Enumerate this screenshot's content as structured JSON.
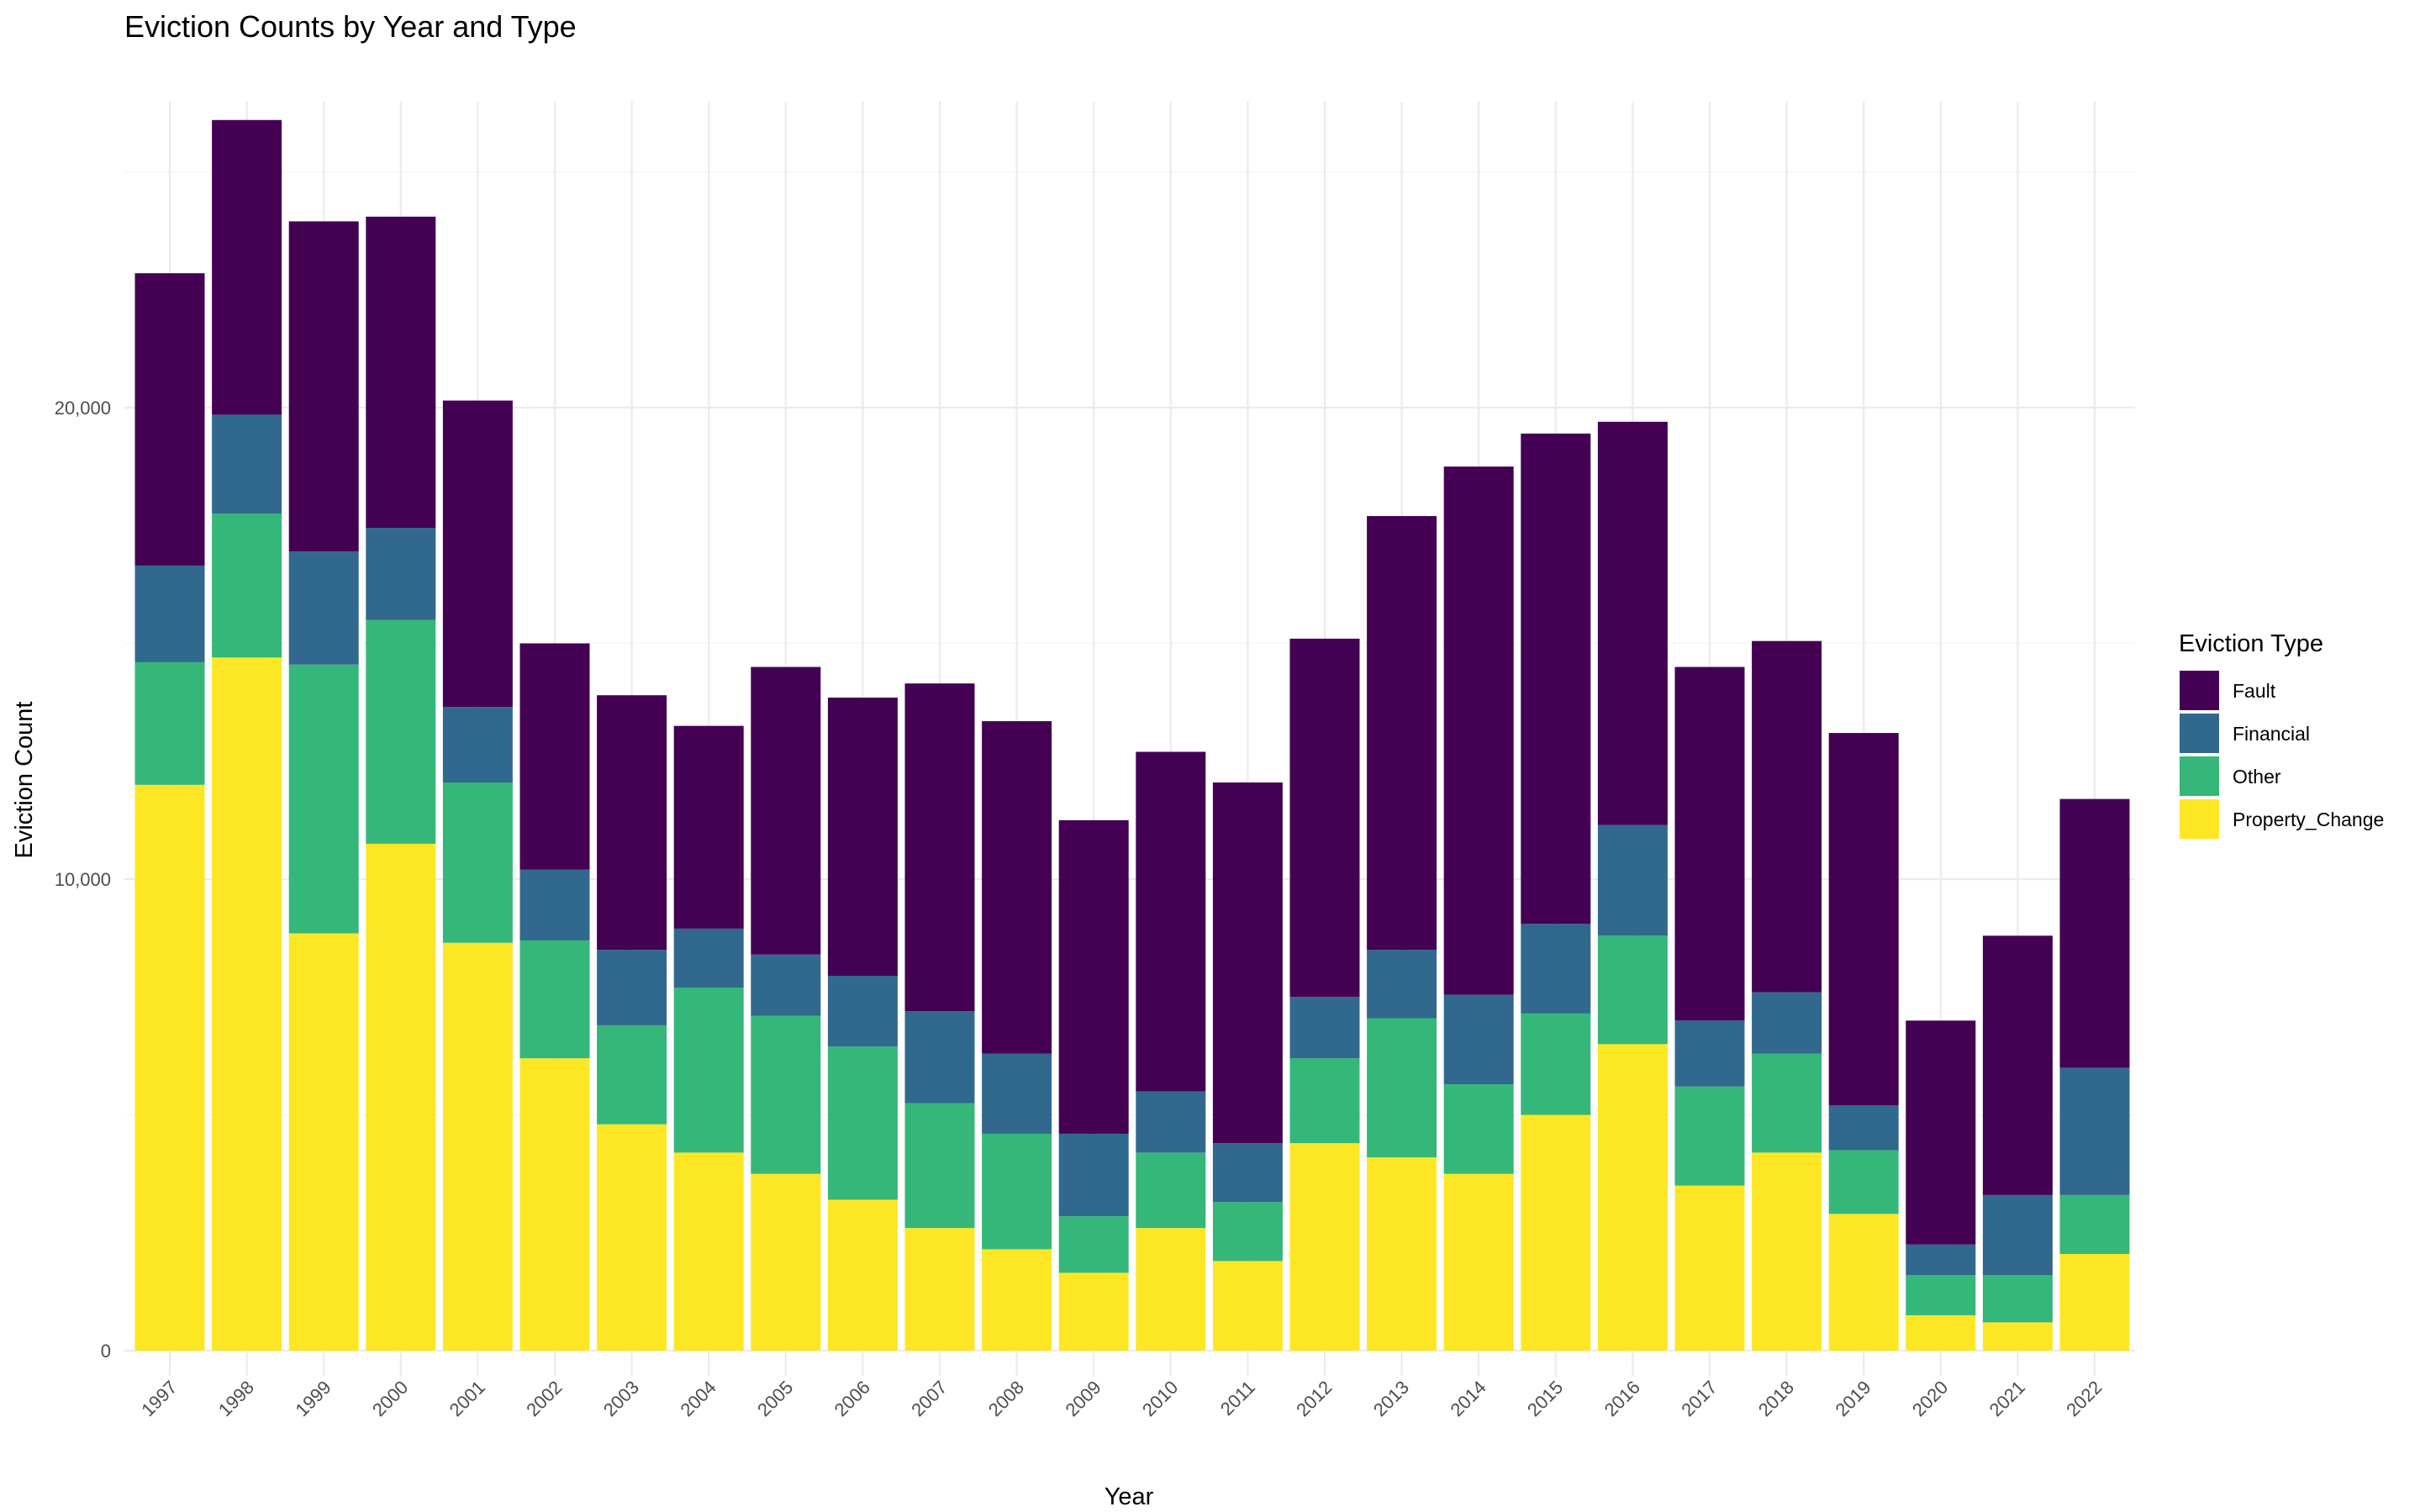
{
  "chart_data": {
    "type": "bar",
    "stacked": true,
    "title": "Eviction Counts by Year and Type",
    "xlabel": "Year",
    "ylabel": "Eviction Count",
    "ylim": [
      0,
      26000
    ],
    "yticks": [
      0,
      10000,
      20000
    ],
    "ytick_labels": [
      "0",
      "10,000",
      "20,000"
    ],
    "grid": true,
    "legend": {
      "title": "Eviction Type",
      "position": "right"
    },
    "categories": [
      "1997",
      "1998",
      "1999",
      "2000",
      "2001",
      "2002",
      "2003",
      "2004",
      "2005",
      "2006",
      "2007",
      "2008",
      "2009",
      "2010",
      "2011",
      "2012",
      "2013",
      "2014",
      "2015",
      "2016",
      "2017",
      "2018",
      "2019",
      "2020",
      "2021",
      "2022"
    ],
    "series": [
      {
        "name": "Property_Change",
        "color": "#FDE725",
        "values": [
          12000,
          14700,
          8850,
          10750,
          8650,
          6200,
          4800,
          4200,
          3750,
          3200,
          2600,
          2150,
          1650,
          2600,
          1900,
          4400,
          4100,
          3750,
          5000,
          6500,
          3500,
          4200,
          2900,
          750,
          600,
          2050
        ]
      },
      {
        "name": "Other",
        "color": "#35B779",
        "values": [
          2600,
          3050,
          5700,
          4750,
          3400,
          2500,
          2100,
          3500,
          3350,
          3250,
          2650,
          2450,
          1200,
          1600,
          1250,
          1800,
          2950,
          1900,
          2150,
          2300,
          2100,
          2100,
          1350,
          850,
          1000,
          1250
        ]
      },
      {
        "name": "Financial",
        "color": "#31688E",
        "values": [
          2050,
          2100,
          2400,
          1950,
          1600,
          1500,
          1600,
          1250,
          1300,
          1500,
          1950,
          1700,
          1750,
          1300,
          1250,
          1300,
          1450,
          1900,
          1900,
          2350,
          1400,
          1300,
          950,
          650,
          1700,
          2700
        ]
      },
      {
        "name": "Fault",
        "color": "#440154",
        "values": [
          6200,
          6250,
          7000,
          6600,
          6500,
          4800,
          5400,
          4300,
          6100,
          5900,
          6950,
          7050,
          6650,
          7200,
          7650,
          7600,
          9200,
          11200,
          10400,
          8550,
          7500,
          7450,
          7900,
          4750,
          5500,
          5700
        ]
      }
    ]
  }
}
